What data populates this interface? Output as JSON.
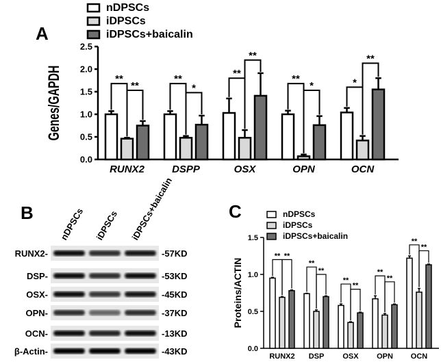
{
  "panels": {
    "a": "A",
    "b": "B",
    "c": "C"
  },
  "colors": {
    "nDPSCs": "#ffffff",
    "iDPSCs": "#d9d9d9",
    "iDPSCs+baicalin": "#6e6e6e",
    "outline": "#000000"
  },
  "chart_data": [
    {
      "panel": "A",
      "type": "bar",
      "ylabel": "Genes/GAPDH",
      "ylim": [
        0,
        2.5
      ],
      "yticks": [
        "0.0",
        "0.5",
        "1.0",
        "1.5",
        "2.0",
        "2.5"
      ],
      "legend_placement": "top",
      "categories": [
        "RUNX2",
        "DSPP",
        "OSX",
        "OPN",
        "OCN"
      ],
      "series": [
        {
          "name": "nDPSCs",
          "values": [
            1.0,
            1.0,
            1.03,
            1.0,
            1.04
          ],
          "errors": [
            0.07,
            0.07,
            0.32,
            0.08,
            0.1
          ]
        },
        {
          "name": "iDPSCs",
          "values": [
            0.46,
            0.48,
            0.48,
            0.07,
            0.42
          ],
          "errors": [
            0.02,
            0.04,
            0.17,
            0.04,
            0.1
          ]
        },
        {
          "name": "iDPSCs+baicalin",
          "values": [
            0.75,
            0.77,
            1.41,
            0.76,
            1.55
          ],
          "errors": [
            0.1,
            0.2,
            0.5,
            0.2,
            0.25
          ]
        }
      ],
      "significance": [
        [
          {
            "label": "**",
            "level": 1.68
          },
          {
            "label": "**",
            "level": 1.53
          }
        ],
        [
          {
            "label": "**",
            "level": 1.68
          },
          {
            "label": "*",
            "level": 1.48
          }
        ],
        [
          {
            "label": "**",
            "level": 1.8
          },
          {
            "label": "**",
            "level": 2.2
          }
        ],
        [
          {
            "label": "**",
            "level": 1.68
          },
          {
            "label": "*",
            "level": 1.53
          }
        ],
        [
          {
            "label": "*",
            "level": 1.6
          },
          {
            "label": "**",
            "level": 2.13
          }
        ]
      ]
    },
    {
      "panel": "C",
      "type": "bar",
      "ylabel": "Proteins/ACTIN",
      "ylim": [
        0,
        1.5
      ],
      "yticks": [
        "0.0",
        "0.5",
        "1.0",
        "1.5"
      ],
      "legend_placement": "top",
      "categories": [
        "RUNX2",
        "DSP",
        "OSX",
        "OPN",
        "OCN"
      ],
      "series": [
        {
          "name": "nDPSCs",
          "values": [
            0.95,
            0.74,
            0.58,
            0.67,
            1.22
          ],
          "errors": [
            0.01,
            0.005,
            0.02,
            0.04,
            0.03
          ]
        },
        {
          "name": "iDPSCs",
          "values": [
            0.69,
            0.5,
            0.35,
            0.45,
            0.76
          ],
          "errors": [
            0.01,
            0.02,
            0.01,
            0.02,
            0.05
          ]
        },
        {
          "name": "iDPSCs+baicalin",
          "values": [
            0.78,
            0.7,
            0.48,
            0.59,
            1.13
          ],
          "errors": [
            0.01,
            0.01,
            0.01,
            0.01,
            0.01
          ]
        }
      ],
      "significance": [
        [
          {
            "label": "**",
            "level": 1.2
          },
          {
            "label": "**",
            "level": 1.2
          }
        ],
        [
          {
            "label": "**",
            "level": 1.1
          },
          {
            "label": "**",
            "level": 1.0
          }
        ],
        [
          {
            "label": "**",
            "level": 0.87
          },
          {
            "label": "**",
            "level": 0.8
          }
        ],
        [
          {
            "label": "**",
            "level": 0.98
          },
          {
            "label": "**",
            "level": 0.9
          }
        ],
        [
          {
            "label": "**",
            "level": 1.4
          },
          {
            "label": "**",
            "level": 1.32
          }
        ]
      ]
    }
  ],
  "blot": {
    "lanes": [
      "nDPSCs",
      "iDPSCs",
      "iDPSCs+baicalin"
    ],
    "rows": [
      {
        "protein": "RUNX2-",
        "size": "-57KD",
        "intensity": [
          0.95,
          0.8,
          0.9
        ]
      },
      {
        "protein": "DSP-",
        "size": "-53KD",
        "intensity": [
          0.95,
          0.8,
          0.95
        ]
      },
      {
        "protein": "OSX-",
        "size": "-45KD",
        "intensity": [
          0.95,
          0.75,
          0.9
        ]
      },
      {
        "protein": "OPN-",
        "size": "-37KD",
        "intensity": [
          0.8,
          0.55,
          0.8
        ]
      },
      {
        "protein": "OCN-",
        "size": "-13KD",
        "intensity": [
          0.95,
          0.85,
          0.95
        ]
      },
      {
        "protein": "β-Actin-",
        "size": "-43KD",
        "intensity": [
          1,
          1,
          1
        ]
      }
    ]
  }
}
